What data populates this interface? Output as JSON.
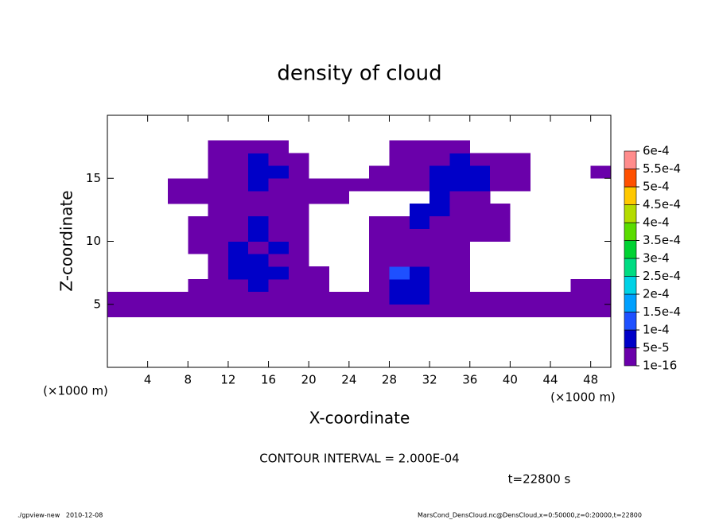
{
  "chart_data": {
    "type": "contour",
    "title": "density of cloud",
    "x_label": "X-coordinate",
    "y_label": "Z-coordinate",
    "x_unit": "(×1000 m)",
    "y_unit": "(×1000 m)",
    "xlim": [
      0,
      50
    ],
    "ylim": [
      0,
      20
    ],
    "xticks": [
      4,
      8,
      12,
      16,
      20,
      24,
      28,
      32,
      36,
      40,
      44,
      48
    ],
    "yticks": [
      5,
      10,
      15
    ],
    "levels": [
      {
        "value": 1e-16,
        "label": "1e-16"
      },
      {
        "value": 5e-05,
        "label": "5e-5"
      },
      {
        "value": 0.0001,
        "label": "1e-4"
      },
      {
        "value": 0.00015,
        "label": "1.5e-4"
      },
      {
        "value": 0.0002,
        "label": "2e-4"
      },
      {
        "value": 0.00025,
        "label": "2.5e-4"
      },
      {
        "value": 0.0003,
        "label": "3e-4"
      },
      {
        "value": 0.00035,
        "label": "3.5e-4"
      },
      {
        "value": 0.0004,
        "label": "4e-4"
      },
      {
        "value": 0.00045,
        "label": "4.5e-4"
      },
      {
        "value": 0.0005,
        "label": "5e-4"
      },
      {
        "value": 0.00055,
        "label": "5.5e-4"
      },
      {
        "value": 0.0006,
        "label": "6e-4"
      }
    ],
    "colors": [
      "#6a00aa",
      "#0000c8",
      "#1e50ff",
      "#00a0ff",
      "#00d2e6",
      "#00dc82",
      "#00d232",
      "#5adc00",
      "#b4dc00",
      "#ffc800",
      "#ff5000",
      "#ff8c8c"
    ],
    "field": [
      [
        0,
        0,
        0,
        0,
        0,
        0,
        0,
        0,
        0,
        0,
        0,
        0,
        0,
        0,
        0,
        0,
        0,
        0,
        0,
        0,
        0,
        0,
        0,
        0,
        0
      ],
      [
        0,
        0,
        0,
        0,
        0,
        0,
        0,
        0,
        0,
        0,
        0,
        0,
        0,
        0,
        0,
        0,
        0,
        0,
        0,
        0,
        0,
        0,
        0,
        0,
        0
      ],
      [
        0,
        0,
        0,
        0,
        0,
        0,
        0,
        0,
        0,
        0,
        0,
        0,
        0,
        0,
        0,
        0,
        0,
        0,
        0,
        0,
        0,
        0,
        0,
        0,
        0
      ],
      [
        0,
        0,
        0,
        0,
        0,
        0,
        0,
        0,
        0,
        0,
        0,
        0,
        0,
        0,
        0,
        0,
        0,
        0,
        0,
        0,
        0,
        0,
        0,
        0,
        0
      ],
      [
        1e-16,
        1e-16,
        1e-16,
        1e-16,
        1e-16,
        1e-16,
        1e-16,
        1e-16,
        1e-16,
        1e-16,
        1e-16,
        1e-16,
        1e-16,
        1e-16,
        1e-16,
        1e-16,
        1e-16,
        1e-16,
        1e-16,
        1e-16,
        1e-16,
        1e-16,
        1e-16,
        1e-16,
        1e-16
      ],
      [
        1e-16,
        1e-16,
        1e-16,
        1e-16,
        1e-16,
        1e-16,
        1e-16,
        1e-16,
        1e-16,
        1e-16,
        1e-16,
        1e-16,
        1e-16,
        1e-16,
        5e-05,
        5e-05,
        1e-16,
        1e-16,
        1e-16,
        1e-16,
        1e-16,
        1e-16,
        1e-16,
        1e-16,
        1e-16
      ],
      [
        0,
        0,
        0,
        0,
        1e-16,
        1e-16,
        1e-16,
        5e-05,
        1e-16,
        1e-16,
        1e-16,
        0,
        0,
        1e-16,
        5e-05,
        5e-05,
        1e-16,
        1e-16,
        0,
        0,
        0,
        0,
        0,
        1e-16,
        1e-16
      ],
      [
        0,
        0,
        0,
        0,
        0,
        1e-16,
        5e-05,
        5e-05,
        5e-05,
        1e-16,
        1e-16,
        0,
        0,
        1e-16,
        0.0001,
        5e-05,
        1e-16,
        1e-16,
        0,
        0,
        0,
        0,
        0,
        0,
        0
      ],
      [
        0,
        0,
        0,
        0,
        0,
        1e-16,
        5e-05,
        5e-05,
        1e-16,
        1e-16,
        0,
        0,
        0,
        1e-16,
        1e-16,
        1e-16,
        1e-16,
        1e-16,
        0,
        0,
        0,
        0,
        0,
        0,
        0
      ],
      [
        0,
        0,
        0,
        0,
        1e-16,
        1e-16,
        5e-05,
        1e-16,
        5e-05,
        1e-16,
        0,
        0,
        0,
        1e-16,
        1e-16,
        1e-16,
        1e-16,
        1e-16,
        0,
        0,
        0,
        0,
        0,
        0,
        0
      ],
      [
        0,
        0,
        0,
        0,
        1e-16,
        1e-16,
        1e-16,
        5e-05,
        1e-16,
        1e-16,
        0,
        0,
        0,
        1e-16,
        1e-16,
        1e-16,
        1e-16,
        1e-16,
        1e-16,
        1e-16,
        0,
        0,
        0,
        0,
        0
      ],
      [
        0,
        0,
        0,
        0,
        1e-16,
        1e-16,
        1e-16,
        5e-05,
        1e-16,
        1e-16,
        0,
        0,
        0,
        1e-16,
        1e-16,
        5e-05,
        1e-16,
        1e-16,
        1e-16,
        1e-16,
        0,
        0,
        0,
        0,
        0
      ],
      [
        0,
        0,
        0,
        0,
        0,
        1e-16,
        1e-16,
        1e-16,
        1e-16,
        1e-16,
        0,
        0,
        0,
        0,
        0,
        5e-05,
        5e-05,
        1e-16,
        1e-16,
        1e-16,
        0,
        0,
        0,
        0,
        0
      ],
      [
        0,
        0,
        0,
        1e-16,
        1e-16,
        1e-16,
        1e-16,
        1e-16,
        1e-16,
        1e-16,
        1e-16,
        1e-16,
        0,
        0,
        0,
        0,
        5e-05,
        1e-16,
        1e-16,
        0,
        0,
        0,
        0,
        0,
        0
      ],
      [
        0,
        0,
        0,
        1e-16,
        1e-16,
        1e-16,
        1e-16,
        5e-05,
        1e-16,
        1e-16,
        1e-16,
        1e-16,
        1e-16,
        1e-16,
        1e-16,
        1e-16,
        5e-05,
        5e-05,
        5e-05,
        1e-16,
        1e-16,
        0,
        0,
        0,
        0
      ],
      [
        0,
        0,
        0,
        0,
        0,
        1e-16,
        1e-16,
        5e-05,
        5e-05,
        1e-16,
        0,
        0,
        0,
        1e-16,
        1e-16,
        1e-16,
        5e-05,
        5e-05,
        5e-05,
        1e-16,
        1e-16,
        0,
        0,
        0,
        1e-16
      ],
      [
        0,
        0,
        0,
        0,
        0,
        1e-16,
        1e-16,
        5e-05,
        1e-16,
        1e-16,
        0,
        0,
        0,
        0,
        1e-16,
        1e-16,
        1e-16,
        5e-05,
        1e-16,
        1e-16,
        1e-16,
        0,
        0,
        0,
        0
      ],
      [
        0,
        0,
        0,
        0,
        0,
        1e-16,
        1e-16,
        1e-16,
        1e-16,
        0,
        0,
        0,
        0,
        0,
        1e-16,
        1e-16,
        1e-16,
        1e-16,
        0,
        0,
        0,
        0,
        0,
        0,
        0
      ],
      [
        0,
        0,
        0,
        0,
        0,
        0,
        0,
        0,
        0,
        0,
        0,
        0,
        0,
        0,
        0,
        0,
        0,
        0,
        0,
        0,
        0,
        0,
        0,
        0,
        0
      ],
      [
        0,
        0,
        0,
        0,
        0,
        0,
        0,
        0,
        0,
        0,
        0,
        0,
        0,
        0,
        0,
        0,
        0,
        0,
        0,
        0,
        0,
        0,
        0,
        0,
        0
      ]
    ],
    "contour_interval": "CONTOUR INTERVAL = 2.000E-04",
    "time_label": "t=22800 s",
    "footer_left": "./gpview-new   2010-12-08",
    "footer_right": "MarsCond_DensCloud.nc@DensCloud,x=0:50000,z=0:20000,t=22800"
  }
}
